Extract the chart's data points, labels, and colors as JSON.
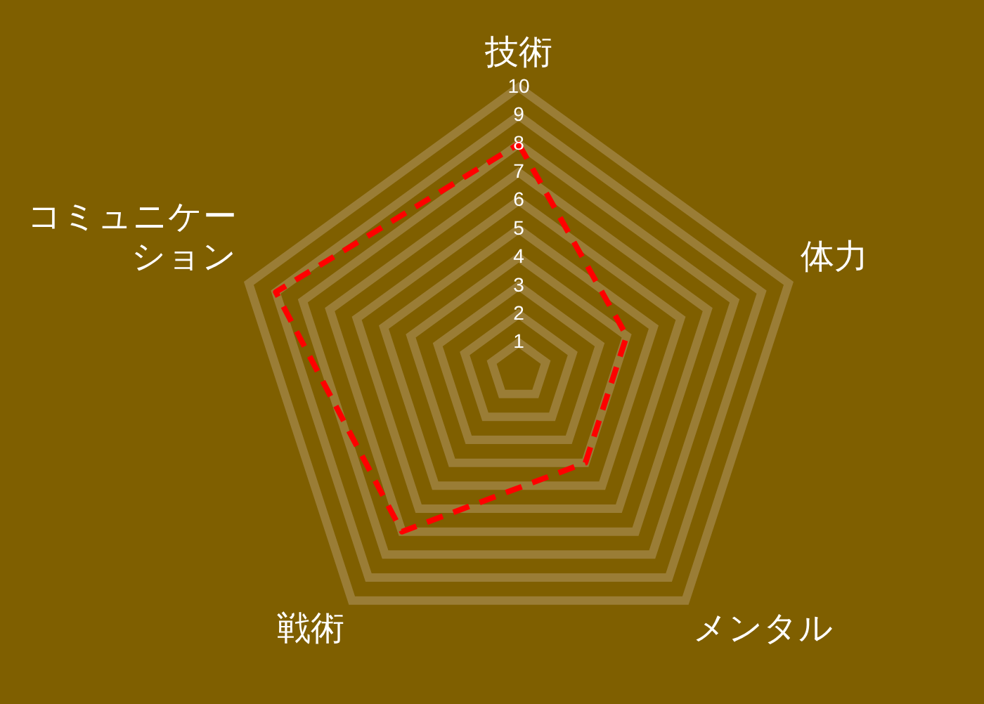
{
  "chart_data": {
    "type": "radar",
    "categories": [
      "技術",
      "体力",
      "メンタル",
      "戦術",
      "コミュニケーション"
    ],
    "series": [
      {
        "color": "#ff0000",
        "values": [
          8,
          4,
          4,
          7,
          9
        ]
      }
    ],
    "ylim": [
      0,
      10
    ],
    "yticks": [
      1,
      2,
      3,
      4,
      5,
      6,
      7,
      8,
      9,
      10
    ],
    "grid": true,
    "legend": false,
    "marker": "none",
    "line_style": "dashed"
  }
}
